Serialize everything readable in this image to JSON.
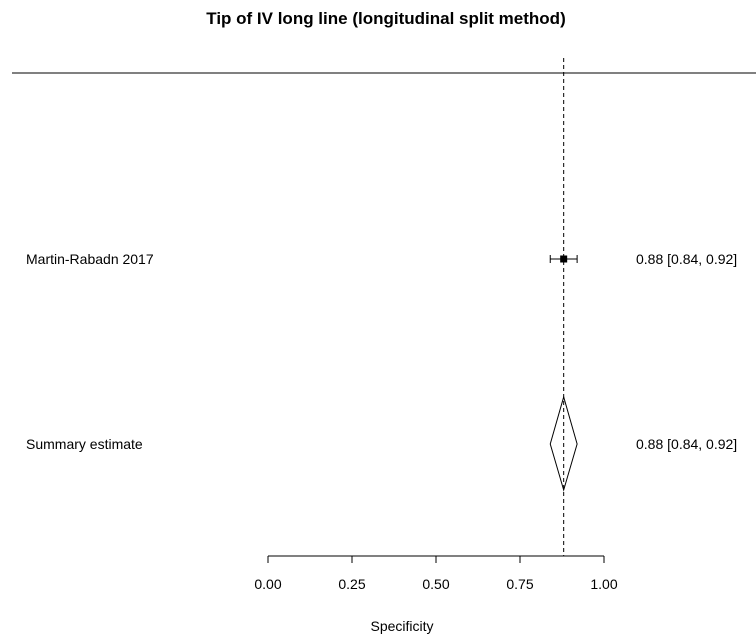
{
  "chart_data": {
    "type": "forest",
    "title": "Tip of IV long line (longitudinal split method)",
    "xlabel": "Specificity",
    "xlim": [
      0,
      1
    ],
    "xticks": [
      "0.00",
      "0.25",
      "0.50",
      "0.75",
      "1.00"
    ],
    "reference_line": 0.88,
    "studies": [
      {
        "label": "Martin-Rabadn 2017",
        "estimate": 0.88,
        "lower": 0.84,
        "upper": 0.92,
        "text": "0.88 [0.84, 0.92]"
      }
    ],
    "summary": {
      "label": "Summary estimate",
      "estimate": 0.88,
      "lower": 0.84,
      "upper": 0.92,
      "text": "0.88 [0.84, 0.92]"
    }
  }
}
